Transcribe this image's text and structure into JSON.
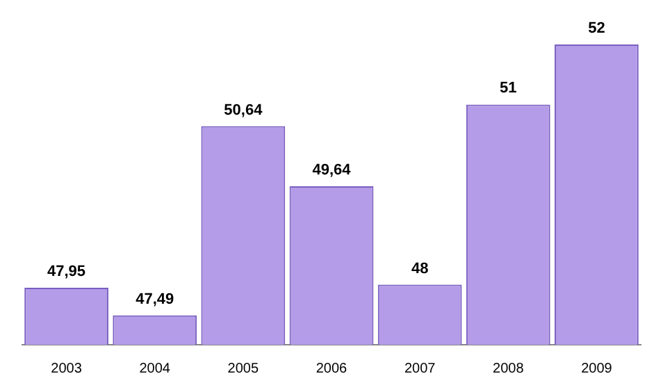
{
  "chart_data": {
    "type": "bar",
    "categories": [
      "2003",
      "2004",
      "2005",
      "2006",
      "2007",
      "2008",
      "2009"
    ],
    "values": [
      47.95,
      47.49,
      50.64,
      49.64,
      48,
      51,
      52
    ],
    "value_labels": [
      "47,95",
      "47,49",
      "50,64",
      "49,64",
      "48",
      "51",
      "52"
    ],
    "color": "#b49ce8",
    "tick_labels": "x",
    "grid": false,
    "legend": false
  }
}
